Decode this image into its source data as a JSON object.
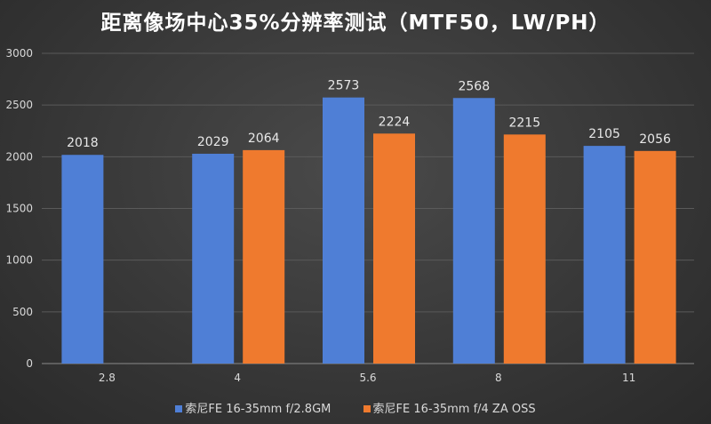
{
  "chart_data": {
    "type": "bar",
    "title": "距离像场中心35%分辨率测试（MTF50，LW/PH）",
    "xlabel": "",
    "ylabel": "",
    "categories": [
      "2.8",
      "4",
      "5.6",
      "8",
      "11"
    ],
    "ylim": [
      0,
      3000
    ],
    "yticks": [
      0,
      500,
      1000,
      1500,
      2000,
      2500,
      3000
    ],
    "grid": true,
    "legend_position": "bottom",
    "series": [
      {
        "name": "索尼FE 16-35mm f/2.8GM",
        "color": "#4f7fd6",
        "values": [
          2018,
          2029,
          2573,
          2568,
          2105
        ]
      },
      {
        "name": "索尼FE 16-35mm f/4 ZA OSS",
        "color": "#ef7a2e",
        "values": [
          null,
          2064,
          2224,
          2215,
          2056
        ]
      }
    ]
  }
}
